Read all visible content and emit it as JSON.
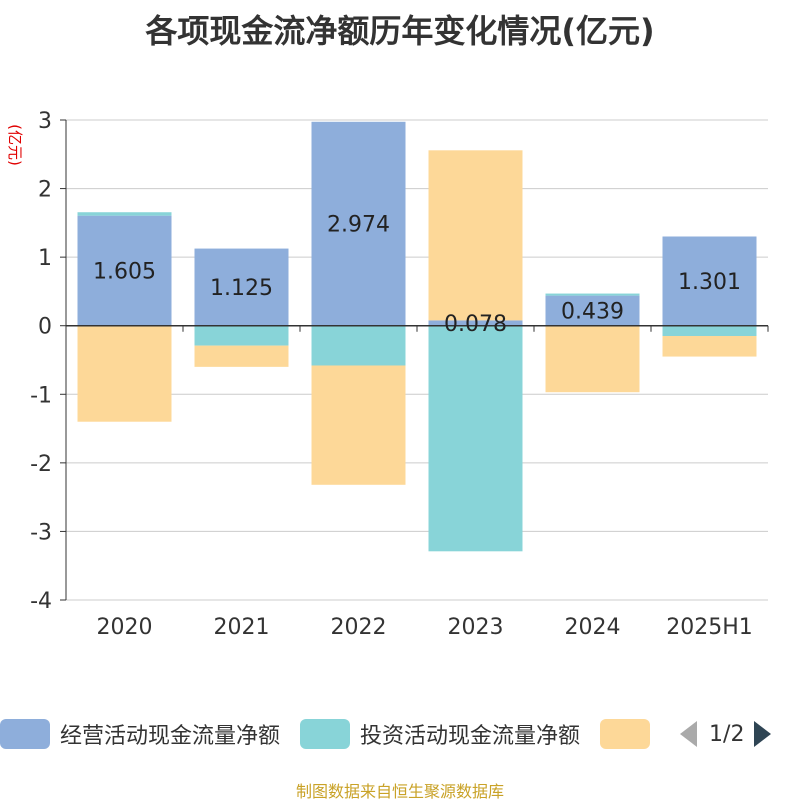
{
  "chart_data": {
    "type": "bar",
    "stacked": true,
    "title": "各项现金流净额历年变化情况(亿元)",
    "ylabel": "(亿元)",
    "xlabel": "",
    "categories": [
      "2020",
      "2021",
      "2022",
      "2023",
      "2024",
      "2025H1"
    ],
    "ylim": [
      -4,
      3
    ],
    "yticks": [
      3,
      2,
      1,
      0,
      -1,
      -2,
      -3,
      -4
    ],
    "grid": true,
    "series": [
      {
        "name": "经营活动现金流量净额",
        "color": "#8eaedb",
        "values": [
          1.605,
          1.125,
          2.974,
          0.078,
          0.439,
          1.301
        ],
        "labels": [
          "1.605",
          "1.125",
          "2.974",
          "0.078",
          "0.439",
          "1.301"
        ]
      },
      {
        "name": "投资活动现金流量净额",
        "color": "#88d4d8",
        "values": [
          0.05,
          -0.29,
          -0.58,
          -3.29,
          0.03,
          -0.15
        ],
        "labels": []
      },
      {
        "name": "",
        "color": "#fdd898",
        "values": [
          -1.4,
          -0.31,
          -1.74,
          2.48,
          -0.97,
          -0.3
        ],
        "labels": []
      }
    ],
    "legend": {
      "position": "bottom",
      "page": "1/2"
    }
  },
  "source": "制图数据来自恒生聚源数据库"
}
